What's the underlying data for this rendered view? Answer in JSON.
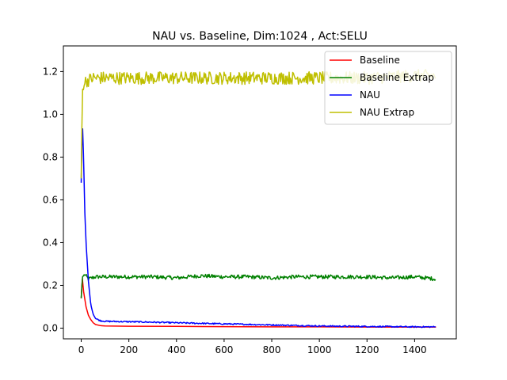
{
  "chart_data": {
    "type": "line",
    "title": "NAU vs. Baseline, Dim:1024 , Act:SELU",
    "xlabel": "",
    "ylabel": "",
    "xlim": [
      -75,
      1575
    ],
    "ylim": [
      -0.05,
      1.32
    ],
    "x_ticks": [
      0,
      200,
      400,
      600,
      800,
      1000,
      1200,
      1400
    ],
    "y_ticks": [
      0.0,
      0.2,
      0.4,
      0.6,
      0.8,
      1.0,
      1.2
    ],
    "x_tick_labels": [
      "0",
      "200",
      "400",
      "600",
      "800",
      "1000",
      "1200",
      "1400"
    ],
    "y_tick_labels": [
      "0.0",
      "0.2",
      "0.4",
      "0.6",
      "0.8",
      "1.0",
      "1.2"
    ],
    "grid": false,
    "legend_position": "top-right",
    "series": [
      {
        "name": "Baseline",
        "color": "#ff0000",
        "points": [
          [
            0,
            0.14
          ],
          [
            5,
            0.23
          ],
          [
            10,
            0.17
          ],
          [
            20,
            0.1
          ],
          [
            30,
            0.06
          ],
          [
            40,
            0.04
          ],
          [
            50,
            0.025
          ],
          [
            60,
            0.017
          ],
          [
            80,
            0.012
          ],
          [
            100,
            0.01
          ],
          [
            200,
            0.009
          ],
          [
            400,
            0.008
          ],
          [
            600,
            0.007
          ],
          [
            800,
            0.006
          ],
          [
            1000,
            0.006
          ],
          [
            1200,
            0.005
          ],
          [
            1400,
            0.005
          ],
          [
            1490,
            0.005
          ]
        ]
      },
      {
        "name": "Baseline Extrap",
        "color": "#008000",
        "points": [
          [
            0,
            0.14
          ],
          [
            5,
            0.24
          ],
          [
            15,
            0.25
          ],
          [
            30,
            0.23
          ],
          [
            60,
            0.24
          ],
          [
            100,
            0.24
          ],
          [
            200,
            0.24
          ],
          [
            300,
            0.24
          ],
          [
            400,
            0.235
          ],
          [
            500,
            0.245
          ],
          [
            600,
            0.24
          ],
          [
            700,
            0.24
          ],
          [
            800,
            0.235
          ],
          [
            900,
            0.24
          ],
          [
            1000,
            0.24
          ],
          [
            1100,
            0.24
          ],
          [
            1200,
            0.24
          ],
          [
            1300,
            0.235
          ],
          [
            1400,
            0.24
          ],
          [
            1490,
            0.23
          ]
        ]
      },
      {
        "name": "NAU",
        "color": "#0000ff",
        "points": [
          [
            0,
            0.68
          ],
          [
            5,
            0.97
          ],
          [
            10,
            0.78
          ],
          [
            15,
            0.54
          ],
          [
            20,
            0.4
          ],
          [
            30,
            0.22
          ],
          [
            40,
            0.11
          ],
          [
            50,
            0.065
          ],
          [
            60,
            0.045
          ],
          [
            80,
            0.035
          ],
          [
            100,
            0.032
          ],
          [
            200,
            0.03
          ],
          [
            300,
            0.028
          ],
          [
            400,
            0.025
          ],
          [
            600,
            0.02
          ],
          [
            800,
            0.015
          ],
          [
            1000,
            0.01
          ],
          [
            1200,
            0.008
          ],
          [
            1400,
            0.006
          ],
          [
            1490,
            0.006
          ]
        ]
      },
      {
        "name": "NAU Extrap",
        "color": "#bfbf00",
        "base_points": [
          [
            0,
            0.7
          ],
          [
            5,
            1.11
          ],
          [
            10,
            1.15
          ],
          [
            50,
            1.17
          ],
          [
            100,
            1.17
          ],
          [
            200,
            1.17
          ],
          [
            400,
            1.17
          ],
          [
            600,
            1.17
          ],
          [
            800,
            1.17
          ],
          [
            1000,
            1.17
          ],
          [
            1200,
            1.17
          ],
          [
            1400,
            1.18
          ],
          [
            1490,
            1.18
          ]
        ],
        "noise_amplitude": 0.03
      }
    ]
  }
}
